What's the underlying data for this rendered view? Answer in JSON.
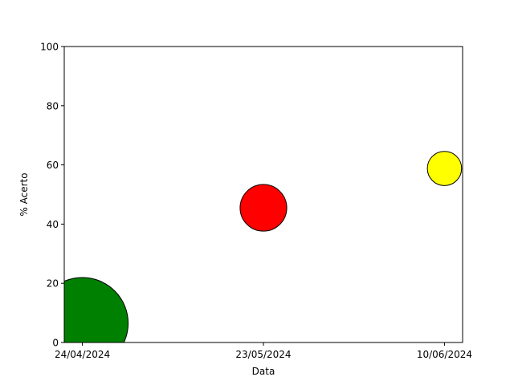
{
  "chart_data": {
    "type": "scatter",
    "title": "",
    "xlabel": "Data",
    "ylabel": "% Acerto",
    "x_categories": [
      "24/04/2024",
      "23/05/2024",
      "10/06/2024"
    ],
    "ylim": [
      0,
      100
    ],
    "yticks": [
      0,
      20,
      40,
      60,
      80,
      100
    ],
    "grid": false,
    "legend": "none",
    "points": [
      {
        "x": "24/04/2024",
        "y": 6.5,
        "size": 100,
        "color": "#008000"
      },
      {
        "x": "23/05/2024",
        "y": 45.5,
        "size": 26,
        "color": "#ff0000"
      },
      {
        "x": "10/06/2024",
        "y": 58.8,
        "size": 14,
        "color": "#ffff00"
      }
    ]
  }
}
